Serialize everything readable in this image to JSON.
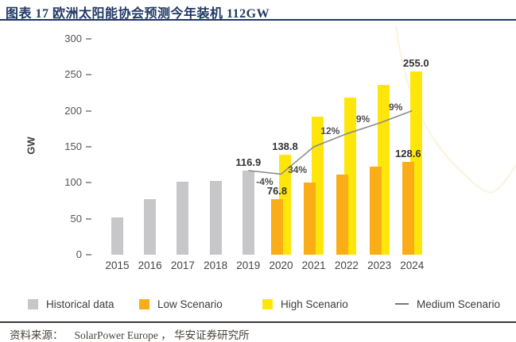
{
  "header": {
    "title": "图表 17  欧洲太阳能协会预测今年装机 112GW"
  },
  "source": {
    "prefix": "资料来源：",
    "text": "SolarPower Europe ， 华安证券研究所"
  },
  "colors": {
    "title_navy": "#203864",
    "historical_gray": "#C7C7C9",
    "low_orange": "#FBAD18",
    "high_yellow": "#FFE60A",
    "medium_line": "#8C8C8C",
    "watermark": "#FBF5E2"
  },
  "legend": [
    {
      "label": "Historical data",
      "swatch": "square",
      "color": "#C7C7C9"
    },
    {
      "label": "Low Scenario",
      "swatch": "square",
      "color": "#FBAD18"
    },
    {
      "label": "High Scenario",
      "swatch": "square",
      "color": "#FFE60A"
    },
    {
      "label": "Medium Scenario",
      "swatch": "line",
      "color": "#777777"
    }
  ],
  "chart_data": {
    "type": "bar",
    "title": "图表 17 欧洲太阳能协会预测今年装机 112GW",
    "xlabel": "",
    "ylabel": "GW",
    "ylim": [
      0,
      300
    ],
    "yticks": [
      0,
      50,
      100,
      150,
      200,
      250,
      300
    ],
    "grid": false,
    "legend_position": "bottom",
    "categories": [
      "2015",
      "2016",
      "2017",
      "2018",
      "2019",
      "2020",
      "2021",
      "2022",
      "2023",
      "2024"
    ],
    "series": [
      {
        "name": "Historical data",
        "type": "bar",
        "color": "#C7C7C9",
        "values": [
          52,
          77,
          101,
          103,
          116.9,
          null,
          null,
          null,
          null,
          null
        ]
      },
      {
        "name": "High Scenario",
        "type": "bar",
        "color": "#FFE60A",
        "values": [
          null,
          null,
          null,
          null,
          null,
          138.8,
          192,
          218,
          236,
          255.0
        ]
      },
      {
        "name": "Low Scenario",
        "type": "bar",
        "color": "#FBAD18",
        "values": [
          null,
          null,
          null,
          null,
          null,
          76.8,
          100,
          111,
          122,
          128.6
        ]
      },
      {
        "name": "Medium Scenario",
        "type": "line",
        "color": "#8C8C8C",
        "values": [
          null,
          null,
          null,
          null,
          116.9,
          112,
          150,
          168,
          183,
          200
        ]
      }
    ],
    "bar_labels": [
      {
        "text": "116.9",
        "series": "Historical data",
        "year": "2019"
      },
      {
        "text": "138.8",
        "series": "High Scenario",
        "year": "2020"
      },
      {
        "text": "76.8",
        "series": "Low Scenario",
        "year": "2020"
      },
      {
        "text": "255.0",
        "series": "High Scenario",
        "year": "2024"
      },
      {
        "text": "128.6",
        "series": "Low Scenario",
        "year": "2024"
      }
    ],
    "line_annotations": [
      {
        "text": "-4%",
        "between": [
          "2019",
          "2020"
        ],
        "placement": "below"
      },
      {
        "text": "34%",
        "between": [
          "2020",
          "2021"
        ],
        "placement": "below"
      },
      {
        "text": "12%",
        "between": [
          "2021",
          "2022"
        ],
        "placement": "above"
      },
      {
        "text": "9%",
        "between": [
          "2022",
          "2023"
        ],
        "placement": "above"
      },
      {
        "text": "9%",
        "between": [
          "2023",
          "2024"
        ],
        "placement": "above"
      }
    ]
  }
}
